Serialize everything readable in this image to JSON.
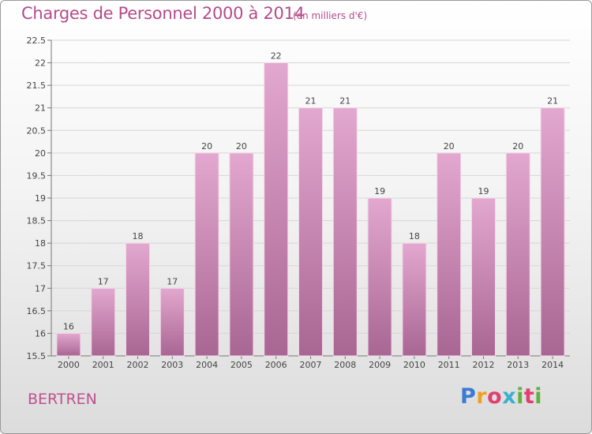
{
  "header": {
    "title": "Charges de Personnel 2000 à 2014",
    "unit_note": "(en milliers d'€)"
  },
  "footer": {
    "place": "BERTREN",
    "brand_letters": [
      "P",
      "r",
      "o",
      "x",
      "i",
      "t",
      "i"
    ],
    "brand_colors": [
      "#3b7bd4",
      "#f0a020",
      "#e04070",
      "#3ab0d0",
      "#60b040",
      "#e04070",
      "#60b040"
    ]
  },
  "colors": {
    "bar_top": "#e3a8cf",
    "bar_bottom": "#a86693",
    "text_accent": "#b44b8b",
    "grid": "#d6d6d6"
  },
  "chart_data": {
    "type": "bar",
    "title": "Charges de Personnel 2000 à 2014",
    "subtitle": "(en milliers d'€)",
    "categories": [
      "2000",
      "2001",
      "2002",
      "2003",
      "2004",
      "2005",
      "2006",
      "2007",
      "2008",
      "2009",
      "2010",
      "2011",
      "2012",
      "2013",
      "2014"
    ],
    "values": [
      16,
      17,
      18,
      17,
      20,
      20,
      22,
      21,
      21,
      19,
      18,
      20,
      19,
      20,
      21
    ],
    "data_labels": [
      "16",
      "17",
      "18",
      "17",
      "20",
      "20",
      "22",
      "21",
      "21",
      "19",
      "18",
      "20",
      "19",
      "20",
      "21"
    ],
    "ylim": [
      15.5,
      22.5
    ],
    "yticks": [
      15.5,
      16,
      16.5,
      17,
      17.5,
      18,
      18.5,
      19,
      19.5,
      20,
      20.5,
      21,
      21.5,
      22,
      22.5
    ],
    "ytick_labels": [
      "15.5",
      "16",
      "16.5",
      "17",
      "17.5",
      "18",
      "18.5",
      "19",
      "19.5",
      "20",
      "20.5",
      "21",
      "21.5",
      "22",
      "22.5"
    ],
    "grid": true
  }
}
